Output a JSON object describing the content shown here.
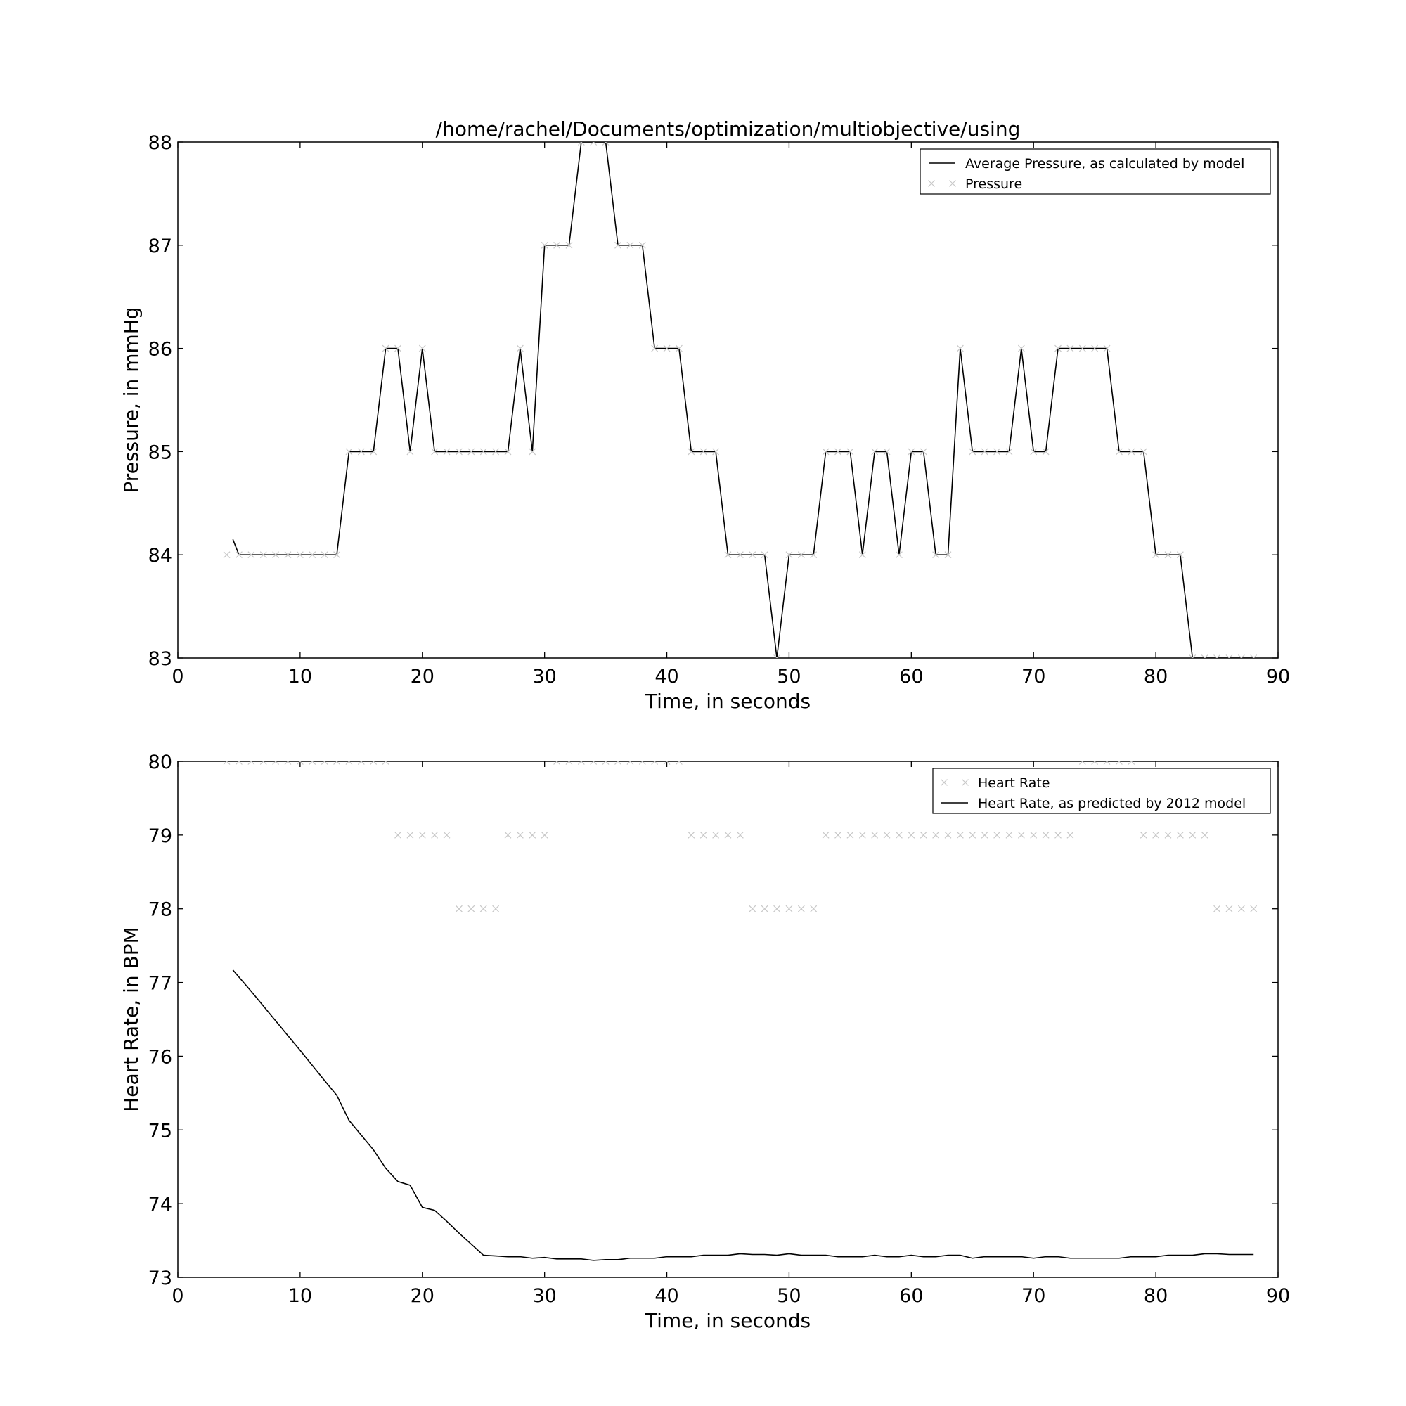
{
  "chart_data": [
    {
      "type": "line",
      "title": "/home/rachel/Documents/optimization/multiobjective/using",
      "xlabel": "Time, in seconds",
      "ylabel": "Pressure, in mmHg",
      "xlim": [
        0,
        90
      ],
      "ylim": [
        83,
        88
      ],
      "xticks": [
        "0",
        "10",
        "20",
        "30",
        "40",
        "50",
        "60",
        "70",
        "80",
        "90"
      ],
      "yticks": [
        "83",
        "84",
        "85",
        "86",
        "87",
        "88"
      ],
      "grid": false,
      "legend_position": "top-right",
      "legend": [
        "Average Pressure, as calculated by model",
        "Pressure"
      ],
      "series": [
        {
          "name": "Average Pressure, as calculated by model",
          "style": "line",
          "color": "#000000",
          "x": [
            4.5,
            5,
            6,
            7,
            8,
            9,
            10,
            11,
            12,
            13,
            14,
            15,
            16,
            17,
            18,
            19,
            20,
            21,
            22,
            23,
            24,
            25,
            26,
            27,
            28,
            29,
            30,
            31,
            32,
            33,
            34,
            35,
            36,
            37,
            38,
            39,
            40,
            41,
            42,
            43,
            44,
            45,
            46,
            47,
            48,
            49,
            50,
            51,
            52,
            53,
            54,
            55,
            56,
            57,
            58,
            59,
            60,
            61,
            62,
            63,
            64,
            65,
            66,
            67,
            68,
            69,
            70,
            71,
            72,
            73,
            74,
            75,
            76,
            77,
            78,
            79,
            80,
            81,
            82,
            83,
            84,
            85,
            86,
            87,
            88
          ],
          "y": [
            84.15,
            84,
            84,
            84,
            84,
            84,
            84,
            84,
            84,
            84,
            85,
            85,
            85,
            86,
            86,
            85,
            86,
            85,
            85,
            85,
            85,
            85,
            85,
            85,
            86,
            85,
            87,
            87,
            87,
            88,
            88,
            88,
            87,
            87,
            87,
            86,
            86,
            86,
            85,
            85,
            85,
            84,
            84,
            84,
            84,
            83,
            84,
            84,
            84,
            85,
            85,
            85,
            84,
            85,
            85,
            84,
            85,
            85,
            84,
            84,
            86,
            85,
            85,
            85,
            85,
            86,
            85,
            85,
            86,
            86,
            86,
            86,
            86,
            85,
            85,
            85,
            84,
            84,
            84,
            83,
            83,
            83,
            83,
            83,
            83
          ]
        },
        {
          "name": "Pressure",
          "style": "x-marker",
          "color": "#c8c8c8",
          "x": [
            4,
            5,
            6,
            7,
            8,
            9,
            10,
            11,
            12,
            13,
            14,
            15,
            16,
            17,
            18,
            19,
            20,
            21,
            22,
            23,
            24,
            25,
            26,
            27,
            28,
            29,
            30,
            31,
            32,
            33,
            34,
            35,
            36,
            37,
            38,
            39,
            40,
            41,
            42,
            43,
            44,
            45,
            46,
            47,
            48,
            49,
            50,
            51,
            52,
            53,
            54,
            55,
            56,
            57,
            58,
            59,
            60,
            61,
            62,
            63,
            64,
            65,
            66,
            67,
            68,
            69,
            70,
            71,
            72,
            73,
            74,
            75,
            76,
            77,
            78,
            79,
            80,
            81,
            82,
            83,
            84,
            85,
            86,
            87,
            88
          ],
          "y": [
            84,
            84,
            84,
            84,
            84,
            84,
            84,
            84,
            84,
            84,
            85,
            85,
            85,
            86,
            86,
            85,
            86,
            85,
            85,
            85,
            85,
            85,
            85,
            85,
            86,
            85,
            87,
            87,
            87,
            88,
            88,
            88,
            87,
            87,
            87,
            86,
            86,
            86,
            85,
            85,
            85,
            84,
            84,
            84,
            84,
            83,
            84,
            84,
            84,
            85,
            85,
            85,
            84,
            85,
            85,
            84,
            85,
            85,
            84,
            84,
            86,
            85,
            85,
            85,
            85,
            86,
            85,
            85,
            86,
            86,
            86,
            86,
            86,
            85,
            85,
            85,
            84,
            84,
            84,
            83,
            83,
            83,
            83,
            83,
            83
          ]
        }
      ]
    },
    {
      "type": "line",
      "title": "",
      "xlabel": "Time, in seconds",
      "ylabel": "Heart Rate, in BPM",
      "xlim": [
        0,
        90
      ],
      "ylim": [
        73,
        80
      ],
      "xticks": [
        "0",
        "10",
        "20",
        "30",
        "40",
        "50",
        "60",
        "70",
        "80",
        "90"
      ],
      "yticks": [
        "73",
        "74",
        "75",
        "76",
        "77",
        "78",
        "79",
        "80"
      ],
      "grid": false,
      "legend_position": "top-right",
      "legend": [
        "Heart Rate",
        "Heart Rate, as predicted by 2012 model"
      ],
      "series": [
        {
          "name": "Heart Rate",
          "style": "x-marker",
          "color": "#c8c8c8",
          "x": [
            4,
            5,
            6,
            7,
            8,
            9,
            10,
            11,
            12,
            13,
            14,
            15,
            16,
            17,
            18,
            19,
            20,
            21,
            22,
            23,
            24,
            25,
            26,
            27,
            28,
            29,
            30,
            31,
            32,
            33,
            34,
            35,
            36,
            37,
            38,
            39,
            40,
            41,
            42,
            43,
            44,
            45,
            46,
            47,
            48,
            49,
            50,
            51,
            52,
            53,
            54,
            55,
            56,
            57,
            58,
            59,
            60,
            61,
            62,
            63,
            64,
            65,
            66,
            67,
            68,
            69,
            70,
            71,
            72,
            73,
            74,
            75,
            76,
            77,
            78,
            79,
            80,
            81,
            82,
            83,
            84,
            85,
            86,
            87,
            88
          ],
          "y": [
            80,
            80,
            80,
            80,
            80,
            80,
            80,
            80,
            80,
            80,
            80,
            80,
            80,
            80,
            79,
            79,
            79,
            79,
            79,
            78,
            78,
            78,
            78,
            79,
            79,
            79,
            79,
            80,
            80,
            80,
            80,
            80,
            80,
            80,
            80,
            80,
            80,
            80,
            79,
            79,
            79,
            79,
            79,
            78,
            78,
            78,
            78,
            78,
            78,
            79,
            79,
            79,
            79,
            79,
            79,
            79,
            79,
            79,
            79,
            79,
            79,
            79,
            79,
            79,
            79,
            79,
            79,
            79,
            79,
            79,
            80,
            80,
            80,
            80,
            80,
            79,
            79,
            79,
            79,
            79,
            79,
            78,
            78,
            78,
            78
          ]
        },
        {
          "name": "Heart Rate, as predicted by 2012 model",
          "style": "line",
          "color": "#000000",
          "x": [
            4.5,
            6,
            8,
            10,
            12,
            13,
            14,
            15,
            16,
            17,
            18,
            19,
            20,
            21,
            22,
            23,
            24,
            25,
            26,
            27,
            28,
            29,
            30,
            31,
            32,
            33,
            34,
            35,
            36,
            37,
            38,
            39,
            40,
            41,
            42,
            43,
            44,
            45,
            46,
            47,
            48,
            49,
            50,
            51,
            52,
            53,
            54,
            55,
            56,
            57,
            58,
            59,
            60,
            61,
            62,
            63,
            64,
            65,
            66,
            67,
            68,
            69,
            70,
            71,
            72,
            73,
            74,
            75,
            76,
            77,
            78,
            79,
            80,
            81,
            82,
            83,
            84,
            85,
            86,
            87,
            88
          ],
          "y": [
            77.17,
            76.88,
            76.48,
            76.08,
            75.67,
            75.47,
            75.13,
            74.93,
            74.73,
            74.48,
            74.3,
            74.25,
            73.95,
            73.91,
            73.76,
            73.6,
            73.45,
            73.3,
            73.29,
            73.28,
            73.28,
            73.26,
            73.27,
            73.25,
            73.25,
            73.25,
            73.23,
            73.24,
            73.24,
            73.26,
            73.26,
            73.26,
            73.28,
            73.28,
            73.28,
            73.3,
            73.3,
            73.3,
            73.32,
            73.31,
            73.31,
            73.3,
            73.32,
            73.3,
            73.3,
            73.3,
            73.28,
            73.28,
            73.28,
            73.3,
            73.28,
            73.28,
            73.3,
            73.28,
            73.28,
            73.3,
            73.3,
            73.26,
            73.28,
            73.28,
            73.28,
            73.28,
            73.26,
            73.28,
            73.28,
            73.26,
            73.26,
            73.26,
            73.26,
            73.26,
            73.28,
            73.28,
            73.28,
            73.3,
            73.3,
            73.3,
            73.32,
            73.32,
            73.31,
            73.31,
            73.31
          ]
        }
      ]
    }
  ]
}
